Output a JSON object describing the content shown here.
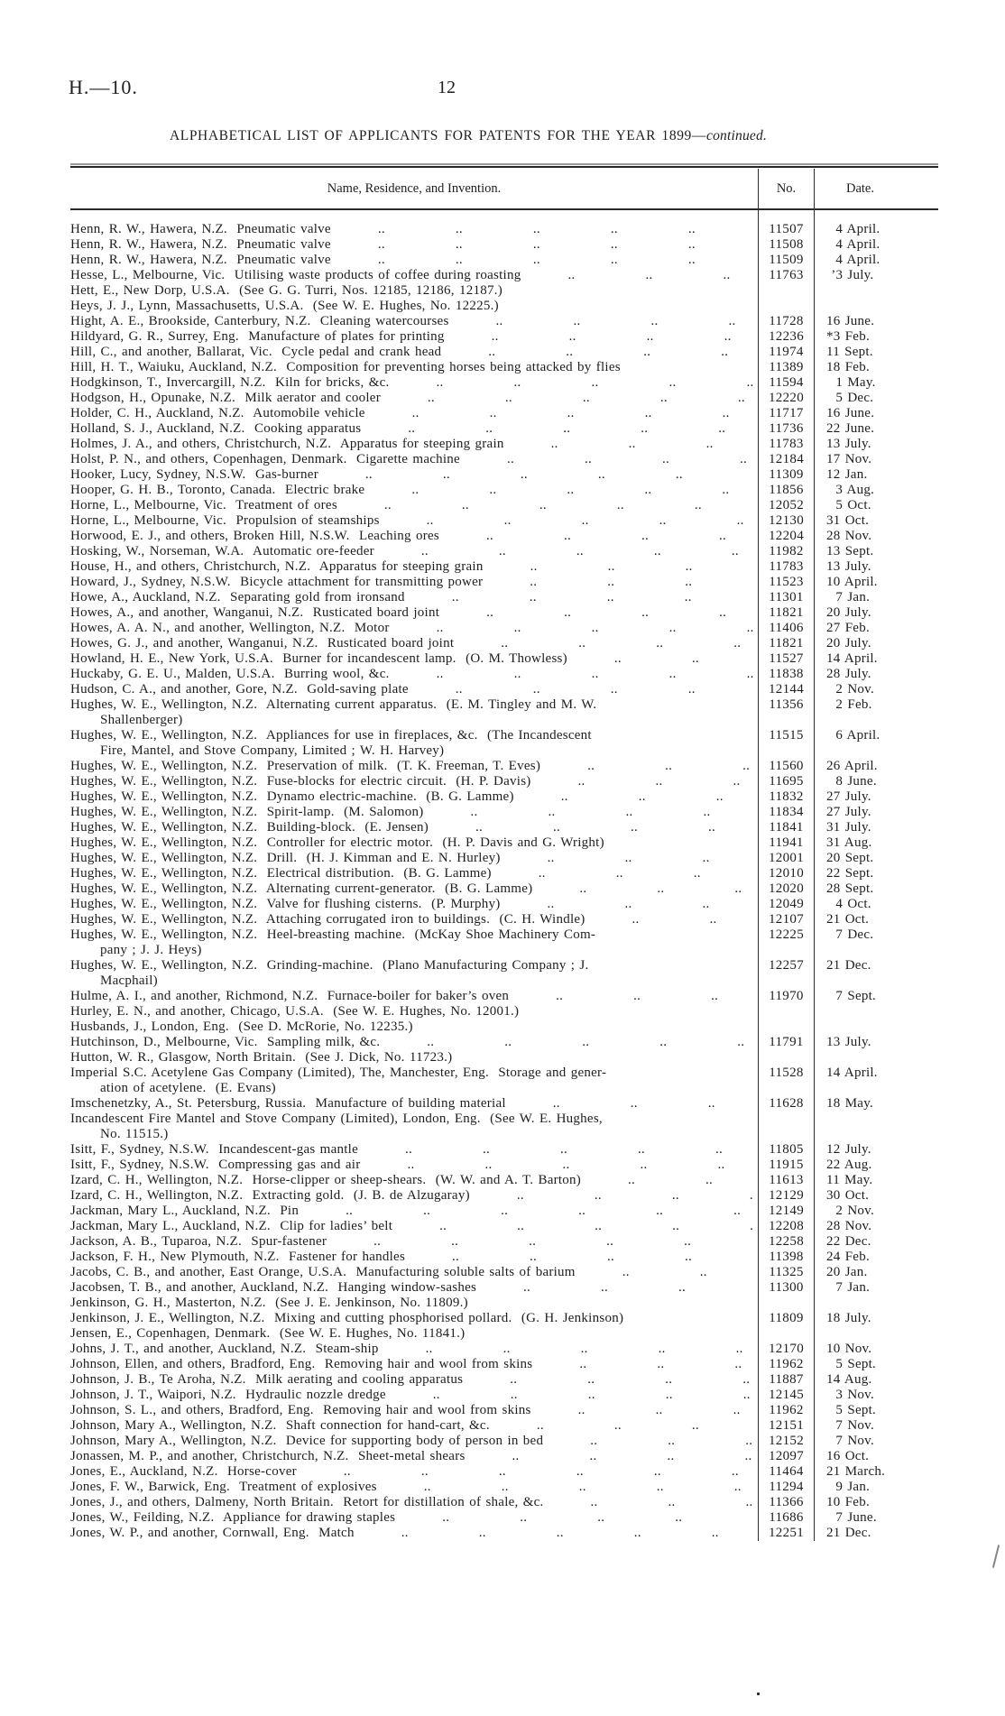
{
  "page": {
    "doc_ref": "H.—10.",
    "page_number": "12"
  },
  "title": {
    "main": "ALPHABETICAL LIST OF APPLICANTS FOR PATENTS FOR THE YEAR 1899—",
    "continued": "continued."
  },
  "table": {
    "headers": {
      "name": "Name, Residence, and Invention.",
      "no": "No.",
      "date": "Date."
    },
    "rows": [
      {
        "text": "Henn, R. W., Hawera, N.Z.  Pneumatic valve",
        "no": "11507",
        "date": "  4 April.",
        "dots": true
      },
      {
        "text": "Henn, R. W., Hawera, N.Z.  Pneumatic valve",
        "no": "11508",
        "date": "  4 April.",
        "dots": true
      },
      {
        "text": "Henn, R. W., Hawera, N.Z.  Pneumatic valve",
        "no": "11509",
        "date": "  4 April.",
        "dots": true
      },
      {
        "text": "Hesse, L., Melbourne, Vic.  Utilising waste products of coffee during roasting",
        "no": "11763",
        "date": " ’3 July.",
        "dots": true
      },
      {
        "text": "Hett, E., New Dorp, U.S.A.  (See G. G. Turri, Nos. 12185, 12186, 12187.)",
        "no": "",
        "date": "",
        "dots": false
      },
      {
        "text": "Heys, J. J., Lynn, Massachusetts, U.S.A.  (See W. E. Hughes, No. 12225.)",
        "no": "",
        "date": "",
        "dots": false
      },
      {
        "text": "Hight, A. E., Brookside, Canterbury, N.Z.  Cleaning watercourses",
        "no": "11728",
        "date": "16 June.",
        "dots": true
      },
      {
        "text": "Hildyard, G. R., Surrey, Eng.  Manufacture of plates for printing",
        "no": "12236",
        "date": "*3 Feb.",
        "dots": true
      },
      {
        "text": "Hill, C., and another, Ballarat, Vic.  Cycle pedal and crank head",
        "no": "11974",
        "date": "11 Sept.",
        "dots": true
      },
      {
        "text": "Hill, H. T., Waiuku, Auckland, N.Z.  Composition for preventing horses being attacked by flies",
        "no": "11389",
        "date": "18 Feb.",
        "dots": false
      },
      {
        "text": "Hodgkinson, T., Invercargill, N.Z.  Kiln for bricks, &c.",
        "no": "11594",
        "date": "  1 May.",
        "dots": true
      },
      {
        "text": "Hodgson, H., Opunake, N.Z.  Milk aerator and cooler",
        "no": "12220",
        "date": "  5 Dec.",
        "dots": true
      },
      {
        "text": "Holder, C. H., Auckland, N.Z.  Automobile vehicle",
        "no": "11717",
        "date": "16 June.",
        "dots": true
      },
      {
        "text": "Holland, S. J., Auckland, N.Z.  Cooking apparatus",
        "no": "11736",
        "date": "22 June.",
        "dots": true
      },
      {
        "text": "Holmes, J. A., and others, Christchurch, N.Z.  Apparatus for steeping grain",
        "no": "11783",
        "date": "13 July.",
        "dots": true
      },
      {
        "text": "Holst, P. N., and others, Copenhagen, Denmark.  Cigarette machine",
        "no": "12184",
        "date": "17 Nov.",
        "dots": true
      },
      {
        "text": "Hooker, Lucy, Sydney, N.S.W.  Gas-burner",
        "no": "11309",
        "date": "12 Jan.",
        "dots": true
      },
      {
        "text": "Hooper, G. H. B., Toronto, Canada.  Electric brake",
        "no": "11856",
        "date": "  3 Aug.",
        "dots": true
      },
      {
        "text": "Horne, L., Melbourne, Vic.  Treatment of ores",
        "no": "12052",
        "date": "  5 Oct.",
        "dots": true
      },
      {
        "text": "Horne, L., Melbourne, Vic.  Propulsion of steamships",
        "no": "12130",
        "date": "31 Oct.",
        "dots": true
      },
      {
        "text": "Horwood, E. J., and others, Broken Hill, N.S.W.  Leaching ores",
        "no": "12204",
        "date": "28 Nov.",
        "dots": true
      },
      {
        "text": "Hosking, W., Norseman, W.A.  Automatic ore-feeder",
        "no": "11982",
        "date": "13 Sept.",
        "dots": true
      },
      {
        "text": "House, H., and others, Christchurch, N.Z.  Apparatus for steeping grain",
        "no": "11783",
        "date": "13 July.",
        "dots": true
      },
      {
        "text": "Howard, J., Sydney, N.S.W.  Bicycle attachment for transmitting power",
        "no": "11523",
        "date": "10 April.",
        "dots": true
      },
      {
        "text": "Howe, A., Auckland, N.Z.  Separating gold from ironsand",
        "no": "11301",
        "date": "  7 Jan.",
        "dots": true
      },
      {
        "text": "Howes, A., and another, Wanganui, N.Z.  Rusticated board joint",
        "no": "11821",
        "date": "20 July.",
        "dots": true
      },
      {
        "text": "Howes, A. A. N., and another, Wellington, N.Z.  Motor",
        "no": "11406",
        "date": "27 Feb.",
        "dots": true
      },
      {
        "text": "Howes, G. J., and another, Wanganui, N.Z.  Rusticated board joint",
        "no": "11821",
        "date": "20 July.",
        "dots": true
      },
      {
        "text": "Howland, H. E., New York, U.S.A.  Burner for incandescent lamp.  (O. M. Thowless)",
        "no": "11527",
        "date": "14 April.",
        "dots": true
      },
      {
        "text": "Huckaby, G. E. U., Malden, U.S.A.  Burring wool, &c.",
        "no": "11838",
        "date": "28 July.",
        "dots": true
      },
      {
        "text": "Hudson, C. A., and another, Gore, N.Z.  Gold-saving plate",
        "no": "12144",
        "date": "  2 Nov.",
        "dots": true
      },
      {
        "text": "Hughes, W. E., Wellington, N.Z.  Alternating current apparatus.  (E. M. Tingley and M. W.",
        "text2": "Shallenberger)",
        "no": "11356",
        "date": "  2 Feb.",
        "dots": false
      },
      {
        "text": "Hughes, W. E., Wellington, N.Z.  Appliances for use in fireplaces, &c.  (The Incandescent",
        "text2": "Fire, Mantel, and Stove Company, Limited ; W. H. Harvey)",
        "no": "11515",
        "date": "  6 April.",
        "dots": false
      },
      {
        "text": "Hughes, W. E., Wellington, N.Z.  Preservation of milk.  (T. K. Freeman, T. Eves)",
        "no": "11560",
        "date": "26 April.",
        "dots": true
      },
      {
        "text": "Hughes, W. E., Wellington, N.Z.  Fuse-blocks for electric circuit.  (H. P. Davis)",
        "no": "11695",
        "date": "  8 June.",
        "dots": true
      },
      {
        "text": "Hughes, W. E., Wellington, N.Z.  Dynamo electric-machine.  (B. G. Lamme)",
        "no": "11832",
        "date": "27 July.",
        "dots": true
      },
      {
        "text": "Hughes, W. E., Wellington, N.Z.  Spirit-lamp.  (M. Salomon)",
        "no": "11834",
        "date": "27 July.",
        "dots": true
      },
      {
        "text": "Hughes, W. E., Wellington, N.Z.  Building-block.  (E. Jensen)",
        "no": "11841",
        "date": "31 July.",
        "dots": true
      },
      {
        "text": "Hughes, W. E., Wellington, N.Z.  Controller for electric motor.  (H. P. Davis and G. Wright)",
        "no": "11941",
        "date": "31 Aug.",
        "dots": false
      },
      {
        "text": "Hughes, W. E., Wellington, N.Z.  Drill.  (H. J. Kimman and E. N. Hurley)",
        "no": "12001",
        "date": "20 Sept.",
        "dots": true
      },
      {
        "text": "Hughes, W. E., Wellington, N.Z.  Electrical distribution.  (B. G. Lamme)",
        "no": "12010",
        "date": "22 Sept.",
        "dots": true
      },
      {
        "text": "Hughes, W. E., Wellington, N.Z.  Alternating current-generator.  (B. G. Lamme)",
        "no": "12020",
        "date": "28 Sept.",
        "dots": true
      },
      {
        "text": "Hughes, W. E., Wellington, N.Z.  Valve for flushing cisterns.  (P. Murphy)",
        "no": "12049",
        "date": "  4 Oct.",
        "dots": true
      },
      {
        "text": "Hughes, W. E., Wellington, N.Z.  Attaching corrugated iron to buildings.  (C. H. Windle)",
        "no": "12107",
        "date": "21 Oct.",
        "dots": true
      },
      {
        "text": "Hughes, W. E., Wellington, N.Z.  Heel-breasting machine.  (McKay Shoe Machinery Com-",
        "text2": "pany ; J. J. Heys)",
        "no": "12225",
        "date": "  7 Dec.",
        "dots": false
      },
      {
        "text": "Hughes, W. E., Wellington, N.Z.  Grinding-machine.  (Plano Manufacturing Company ; J.",
        "text2": "Macphail)",
        "no": "12257",
        "date": "21 Dec.",
        "dots": false
      },
      {
        "text": "Hulme, A. I., and another, Richmond, N.Z.  Furnace-boiler for baker’s oven",
        "no": "11970",
        "date": "  7 Sept.",
        "dots": true
      },
      {
        "text": "Hurley, E. N., and another, Chicago, U.S.A.  (See W. E. Hughes, No. 12001.)",
        "no": "",
        "date": "",
        "dots": false
      },
      {
        "text": "Husbands, J., London, Eng.  (See D. McRorie, No. 12235.)",
        "no": "",
        "date": "",
        "dots": false
      },
      {
        "text": "Hutchinson, D., Melbourne, Vic.  Sampling milk, &c.",
        "no": "11791",
        "date": "13 July.",
        "dots": true
      },
      {
        "text": "Hutton, W. R., Glasgow, North Britain.  (See J. Dick, No. 11723.)",
        "no": "",
        "date": "",
        "dots": false
      },
      {
        "text": "Imperial S.C. Acetylene Gas Company (Limited), The, Manchester, Eng.  Storage and gener-",
        "text2": "ation of acetylene.  (E. Evans)",
        "no": "11528",
        "date": "14 April.",
        "dots": false
      },
      {
        "text": "Imschenetzky, A., St. Petersburg, Russia.  Manufacture of building material",
        "no": "11628",
        "date": "18 May.",
        "dots": true
      },
      {
        "text": "Incandescent Fire Mantel and Stove Company (Limited), London, Eng.  (See W. E. Hughes,",
        "text2": "No. 11515.)",
        "no": "",
        "date": "",
        "dots": false
      },
      {
        "text": "Isitt, F., Sydney, N.S.W.  Incandescent-gas mantle",
        "no": "11805",
        "date": "12 July.",
        "dots": true
      },
      {
        "text": "Isitt, F., Sydney, N.S.W.  Compressing gas and air",
        "no": "11915",
        "date": "22 Aug.",
        "dots": true
      },
      {
        "text": "Izard, C. H., Wellington, N.Z.  Horse-clipper or sheep-shears.  (W. W. and A. T. Barton)",
        "no": "11613",
        "date": "11 May.",
        "dots": true
      },
      {
        "text": "Izard, C. H., Wellington, N.Z.  Extracting gold.  (J. B. de Alzugaray)",
        "no": "12129",
        "date": "30 Oct.",
        "dots": true
      },
      {
        "text": "Jackman, Mary L., Auckland, N.Z.  Pin",
        "no": "12149",
        "date": "  2 Nov.",
        "dots": true
      },
      {
        "text": "Jackman, Mary L., Auckland, N.Z.  Clip for ladies’ belt",
        "no": "12208",
        "date": "28 Nov.",
        "dots": true
      },
      {
        "text": "Jackson, A. B., Tuparoa, N.Z.  Spur-fastener",
        "no": "12258",
        "date": "22 Dec.",
        "dots": true
      },
      {
        "text": "Jackson, F. H., New Plymouth, N.Z.  Fastener for handles",
        "no": "11398",
        "date": "24 Feb.",
        "dots": true
      },
      {
        "text": "Jacobs, C. B., and another, East Orange, U.S.A.  Manufacturing soluble salts of barium",
        "no": "11325",
        "date": "20 Jan.",
        "dots": true
      },
      {
        "text": "Jacobsen, T. B., and another, Auckland, N.Z.  Hanging window-sashes",
        "no": "11300",
        "date": "  7 Jan.",
        "dots": true
      },
      {
        "text": "Jenkinson, G. H., Masterton, N.Z.  (See J. E. Jenkinson, No. 11809.)",
        "no": "",
        "date": "",
        "dots": false
      },
      {
        "text": "Jenkinson, J. E., Wellington, N.Z.  Mixing and cutting phosphorised pollard.  (G. H. Jenkinson)",
        "no": "11809",
        "date": "18 July.",
        "dots": false
      },
      {
        "text": "Jensen, E., Copenhagen, Denmark.  (See W. E. Hughes, No. 11841.)",
        "no": "",
        "date": "",
        "dots": false
      },
      {
        "text": "Johns, J. T., and another, Auckland, N.Z.  Steam-ship",
        "no": "12170",
        "date": "10 Nov.",
        "dots": true
      },
      {
        "text": "Johnson, Ellen, and others, Bradford, Eng.  Removing hair and wool from skins",
        "no": "11962",
        "date": "  5 Sept.",
        "dots": true
      },
      {
        "text": "Johnson, J. B., Te Aroha, N.Z.  Milk aerating and cooling apparatus",
        "no": "11887",
        "date": "14 Aug.",
        "dots": true
      },
      {
        "text": "Johnson, J. T., Waipori, N.Z.  Hydraulic nozzle dredge",
        "no": "12145",
        "date": "  3 Nov.",
        "dots": true
      },
      {
        "text": "Johnson, S. L., and others, Bradford, Eng.  Removing hair and wool from skins",
        "no": "11962",
        "date": "  5 Sept.",
        "dots": true
      },
      {
        "text": "Johnson, Mary A., Wellington, N.Z.  Shaft connection for hand-cart, &c.",
        "no": "12151",
        "date": "  7 Nov.",
        "dots": true
      },
      {
        "text": "Johnson, Mary A., Wellington, N.Z.  Device for supporting body of person in bed",
        "no": "12152",
        "date": "  7 Nov.",
        "dots": true
      },
      {
        "text": "Jonassen, M. P., and another, Christchurch, N.Z.  Sheet-metal shears",
        "no": "12097",
        "date": "16 Oct.",
        "dots": true
      },
      {
        "text": "Jones, E., Auckland, N.Z.  Horse-cover",
        "no": "11464",
        "date": "21 March.",
        "dots": true
      },
      {
        "text": "Jones, F. W., Barwick, Eng.  Treatment of explosives",
        "no": "11294",
        "date": "  9 Jan.",
        "dots": true
      },
      {
        "text": "Jones, J., and others, Dalmeny, North Britain.  Retort for distillation of shale, &c.",
        "no": "11366",
        "date": "10 Feb.",
        "dots": true
      },
      {
        "text": "Jones, W., Feilding, N.Z.  Appliance for drawing staples",
        "no": "11686",
        "date": "  7 June.",
        "dots": true
      },
      {
        "text": "Jones, W. P., and another, Cornwall, Eng.  Match",
        "no": "12251",
        "date": "21 Dec.",
        "dots": true
      }
    ]
  }
}
